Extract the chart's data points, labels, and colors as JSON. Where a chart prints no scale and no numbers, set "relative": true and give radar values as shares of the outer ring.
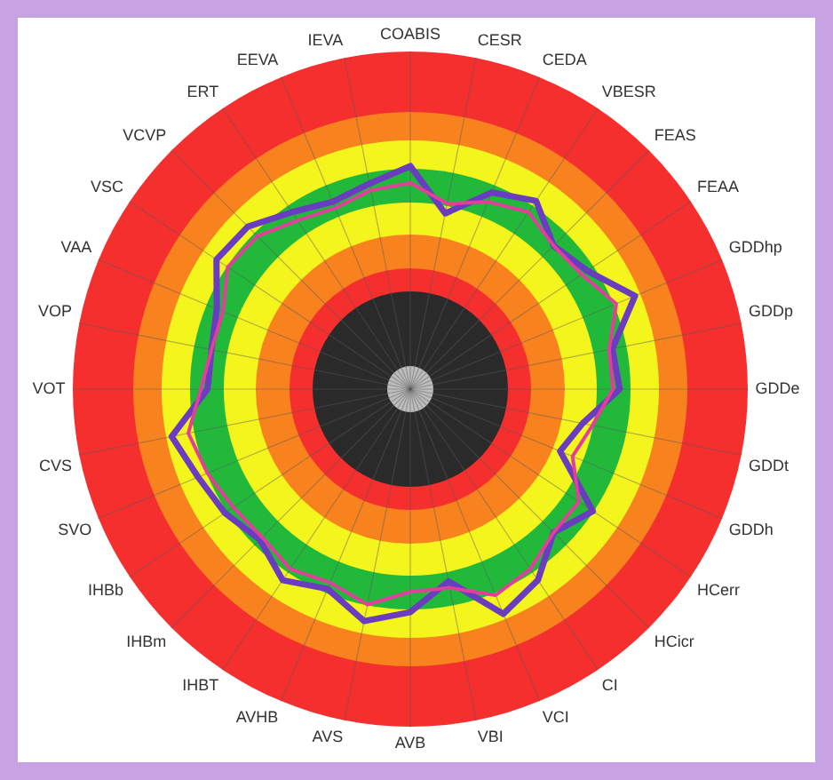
{
  "chart_data": {
    "type": "radar",
    "relative": true,
    "grid": true,
    "legend": false,
    "marker": "none",
    "line_style": "solid",
    "categories": [
      "COABIS",
      "CESR",
      "CEDA",
      "VBESR",
      "FEAS",
      "FEAA",
      "GDDhp",
      "GDDp",
      "GDDe",
      "GDDt",
      "GDDh",
      "HCerr",
      "HCicr",
      "CI",
      "VCI",
      "VBI",
      "AVB",
      "AVS",
      "AVHB",
      "IHBT",
      "IHBm",
      "IHBb",
      "SVO",
      "CVS",
      "VOT",
      "VOP",
      "VAA",
      "VSC",
      "VCVP",
      "ERT",
      "EEVA",
      "IEVA"
    ],
    "series": [
      {
        "color": "#e0409a",
        "values": [
          0.61,
          0.56,
          0.6,
          0.63,
          0.6,
          0.61,
          0.66,
          0.6,
          0.6,
          0.55,
          0.52,
          0.6,
          0.6,
          0.64,
          0.66,
          0.6,
          0.6,
          0.65,
          0.62,
          0.64,
          0.62,
          0.63,
          0.65,
          0.67,
          0.62,
          0.6,
          0.6,
          0.65,
          0.64,
          0.6,
          0.58,
          0.6
        ]
      },
      {
        "color": "#6a3cc0",
        "values": [
          0.66,
          0.53,
          0.63,
          0.67,
          0.6,
          0.63,
          0.72,
          0.61,
          0.62,
          0.52,
          0.48,
          0.65,
          0.6,
          0.68,
          0.72,
          0.58,
          0.66,
          0.7,
          0.64,
          0.68,
          0.63,
          0.66,
          0.68,
          0.72,
          0.6,
          0.6,
          0.62,
          0.69,
          0.68,
          0.63,
          0.6,
          0.62
        ]
      }
    ]
  }
}
